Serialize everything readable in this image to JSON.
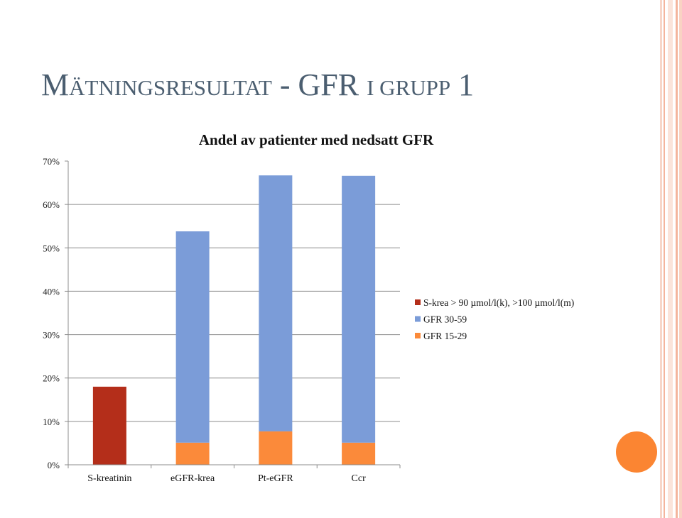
{
  "slide": {
    "title_first": "M",
    "title_caps1": "ÄTNINGSRESULTAT",
    "title_mid": " - GFR ",
    "title_caps2": "I GRUPP",
    "title_end": " 1"
  },
  "colors": {
    "title": "#4b5e70",
    "s_krea": "#b42e1a",
    "gfr_30_59": "#7b9cd8",
    "gfr_15_29": "#fb8a3a",
    "accent_circle": "#fb8532"
  },
  "chart_data": {
    "type": "bar",
    "stacked": true,
    "title": "Andel av patienter med nedsatt GFR",
    "categories": [
      "S-kreatinin",
      "eGFR-krea",
      "Pt-eGFR",
      "Ccr"
    ],
    "series": [
      {
        "name": "S-krea > 90 µmol/l(k), >100 µmol/l(m)",
        "values": [
          18,
          0,
          0,
          0
        ]
      },
      {
        "name": "GFR 30-59",
        "values": [
          0,
          48.7,
          59.0,
          61.5
        ]
      },
      {
        "name": "GFR 15-29",
        "values": [
          0,
          5.1,
          7.7,
          5.1
        ]
      }
    ],
    "stack_order_bottom_to_top": [
      "S-krea > 90 µmol/l(k), >100 µmol/l(m)",
      "GFR 15-29",
      "GFR 30-59"
    ],
    "ylim": [
      0,
      70
    ],
    "yticks": [
      "0%",
      "10%",
      "20%",
      "30%",
      "40%",
      "50%",
      "60%",
      "70%"
    ],
    "xlabel": "",
    "ylabel": "",
    "grid": true,
    "legend_position": "right"
  }
}
